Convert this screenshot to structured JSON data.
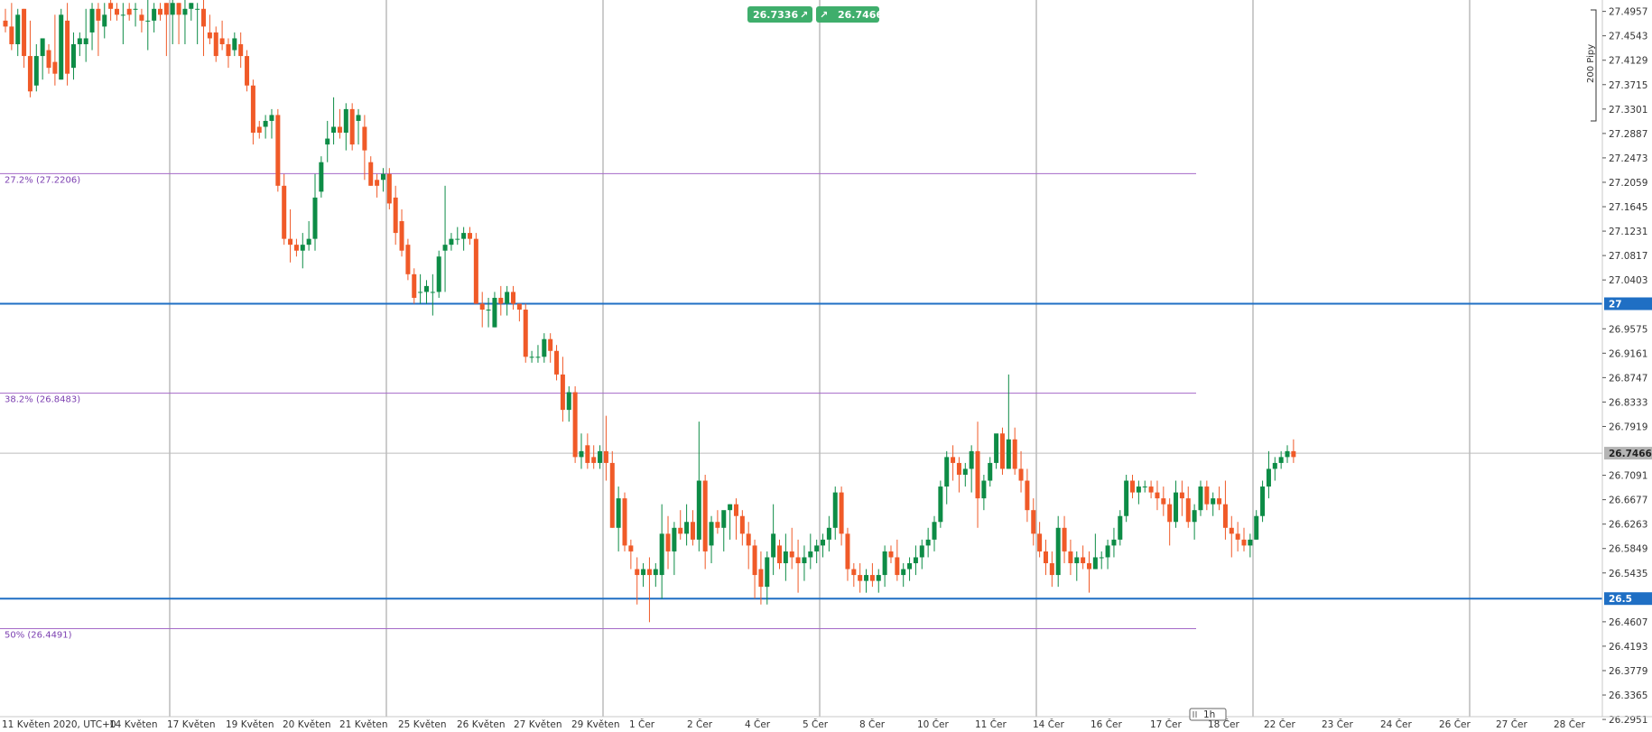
{
  "colors": {
    "up": "#0d8c46",
    "down": "#f05a28",
    "grid": "#9a9a9a",
    "fib": "#a56ac8",
    "fib_text": "#7b3fb0",
    "level": "#1f6fc4",
    "badge": "#3fae6c",
    "current_line": "#bdbdbd",
    "current_tag": "#b4b4b4"
  },
  "top_badges": {
    "sell": "26.7336",
    "sell_icon": "arrow-up-right-icon",
    "buy": "26.7466",
    "buy_icon": "arrow-up-right-icon"
  },
  "scale_label": "200 Pipy",
  "timeframe_label": "1h",
  "chart_data": {
    "type": "candlestick",
    "title": "",
    "xlabel": "",
    "ylabel": "",
    "ylim": [
      26.2738,
      27.515
    ],
    "y_ticks": [
      "27.4957",
      "27.4543",
      "27.4129",
      "27.3715",
      "27.3301",
      "27.2887",
      "27.2473",
      "27.2059",
      "27.1645",
      "27.1231",
      "27.0817",
      "27.0403",
      "26.9575",
      "26.9161",
      "26.8747",
      "26.8333",
      "26.7919",
      "26.7091",
      "26.6677",
      "26.6263",
      "26.5849",
      "26.5435",
      "26.4607",
      "26.4193",
      "26.3779",
      "26.3365",
      "26.2951"
    ],
    "x_ticks": [
      "11 Květen 2020, UTC+0",
      "14 Květen",
      "17 Květen",
      "19 Květen",
      "20 Květen",
      "21 Květen",
      "25 Květen",
      "26 Květen",
      "27 Květen",
      "29 Květen",
      "1 Čer",
      "2 Čer",
      "4 Čer",
      "5 Čer",
      "8 Čer",
      "10 Čer",
      "11 Čer",
      "14 Čer",
      "16 Čer",
      "17 Čer",
      "18 Čer",
      "22 Čer",
      "23 Čer",
      "24 Čer",
      "26 Čer",
      "27 Čer",
      "28 Čer"
    ],
    "fib_levels": [
      {
        "label": "27.2% (27.2206)",
        "value": 27.2206
      },
      {
        "label": "38.2% (26.8483)",
        "value": 26.8483
      },
      {
        "label": "50% (26.4491)",
        "value": 26.4491
      }
    ],
    "horizontal_levels": [
      {
        "label": "27",
        "value": 27.0
      },
      {
        "label": "26.5",
        "value": 26.5
      }
    ],
    "current_price": {
      "label": "26.7466",
      "value": 26.7466
    },
    "grid": true,
    "ohlc": [
      [
        27.48,
        27.5,
        27.46,
        27.47
      ],
      [
        27.47,
        27.51,
        27.43,
        27.44
      ],
      [
        27.44,
        27.5,
        27.42,
        27.49
      ],
      [
        27.5,
        27.5,
        27.4,
        27.42
      ],
      [
        27.42,
        27.48,
        27.35,
        27.36
      ],
      [
        27.37,
        27.44,
        27.36,
        27.42
      ],
      [
        27.42,
        27.45,
        27.38,
        27.45
      ],
      [
        27.43,
        27.44,
        27.39,
        27.4
      ],
      [
        27.41,
        27.49,
        27.37,
        27.39
      ],
      [
        27.38,
        27.5,
        27.38,
        27.49
      ],
      [
        27.48,
        27.51,
        27.37,
        27.39
      ],
      [
        27.4,
        27.46,
        27.38,
        27.44
      ],
      [
        27.44,
        27.46,
        27.42,
        27.45
      ],
      [
        27.44,
        27.5,
        27.41,
        27.45
      ],
      [
        27.46,
        27.51,
        27.43,
        27.5
      ],
      [
        27.5,
        27.51,
        27.42,
        27.48
      ],
      [
        27.47,
        27.51,
        27.45,
        27.49
      ],
      [
        27.51,
        27.52,
        27.48,
        27.5
      ],
      [
        27.5,
        27.51,
        27.48,
        27.49
      ],
      [
        27.49,
        27.51,
        27.44,
        27.49
      ],
      [
        27.5,
        27.51,
        27.48,
        27.49
      ],
      [
        27.5,
        27.51,
        27.47,
        27.5
      ],
      [
        27.49,
        27.5,
        27.46,
        27.48
      ],
      [
        27.48,
        27.52,
        27.43,
        27.48
      ],
      [
        27.48,
        27.51,
        27.46,
        27.5
      ],
      [
        27.5,
        27.51,
        27.48,
        27.49
      ],
      [
        27.51,
        27.51,
        27.42,
        27.49
      ],
      [
        27.49,
        27.52,
        27.44,
        27.51
      ],
      [
        27.51,
        27.51,
        27.44,
        27.49
      ],
      [
        27.49,
        27.52,
        27.44,
        27.5
      ],
      [
        27.5,
        27.51,
        27.48,
        27.51
      ],
      [
        27.5,
        27.51,
        27.44,
        27.5
      ],
      [
        27.5,
        27.52,
        27.42,
        27.47
      ],
      [
        27.46,
        27.49,
        27.44,
        27.45
      ],
      [
        27.46,
        27.47,
        27.41,
        27.42
      ],
      [
        27.45,
        27.48,
        27.43,
        27.44
      ],
      [
        27.44,
        27.45,
        27.4,
        27.42
      ],
      [
        27.43,
        27.46,
        27.42,
        27.45
      ],
      [
        27.44,
        27.46,
        27.4,
        27.42
      ],
      [
        27.42,
        27.43,
        27.36,
        27.37
      ],
      [
        27.37,
        27.38,
        27.27,
        27.29
      ],
      [
        27.3,
        27.31,
        27.28,
        27.29
      ],
      [
        27.3,
        27.32,
        27.28,
        27.31
      ],
      [
        27.31,
        27.33,
        27.28,
        27.32
      ],
      [
        27.32,
        27.33,
        27.19,
        27.2
      ],
      [
        27.2,
        27.22,
        27.1,
        27.11
      ],
      [
        27.11,
        27.16,
        27.07,
        27.1
      ],
      [
        27.1,
        27.11,
        27.08,
        27.09
      ],
      [
        27.09,
        27.12,
        27.06,
        27.1
      ],
      [
        27.1,
        27.14,
        27.09,
        27.11
      ],
      [
        27.11,
        27.22,
        27.09,
        27.18
      ],
      [
        27.19,
        27.25,
        27.18,
        27.24
      ],
      [
        27.27,
        27.31,
        27.24,
        27.28
      ],
      [
        27.29,
        27.35,
        27.27,
        27.3
      ],
      [
        27.3,
        27.33,
        27.28,
        27.29
      ],
      [
        27.29,
        27.34,
        27.26,
        27.33
      ],
      [
        27.33,
        27.34,
        27.26,
        27.27
      ],
      [
        27.31,
        27.33,
        27.27,
        27.32
      ],
      [
        27.3,
        27.32,
        27.21,
        27.26
      ],
      [
        27.24,
        27.25,
        27.2,
        27.2
      ],
      [
        27.21,
        27.22,
        27.18,
        27.2
      ],
      [
        27.21,
        27.23,
        27.19,
        27.22
      ],
      [
        27.22,
        27.23,
        27.16,
        27.17
      ],
      [
        27.18,
        27.2,
        27.1,
        27.12
      ],
      [
        27.14,
        27.16,
        27.08,
        27.09
      ],
      [
        27.1,
        27.11,
        27.04,
        27.05
      ],
      [
        27.05,
        27.06,
        27.0,
        27.01
      ],
      [
        27.02,
        27.05,
        27.0,
        27.02
      ],
      [
        27.02,
        27.04,
        27.0,
        27.03
      ],
      [
        27.02,
        27.05,
        26.98,
        27.02
      ],
      [
        27.02,
        27.09,
        27.01,
        27.08
      ],
      [
        27.09,
        27.2,
        27.02,
        27.1
      ],
      [
        27.1,
        27.12,
        27.09,
        27.11
      ],
      [
        27.11,
        27.13,
        27.1,
        27.11
      ],
      [
        27.11,
        27.13,
        27.09,
        27.12
      ],
      [
        27.12,
        27.13,
        27.1,
        27.11
      ],
      [
        27.11,
        27.12,
        27.0,
        27.0
      ],
      [
        27.0,
        27.02,
        26.96,
        26.99
      ],
      [
        26.99,
        27.01,
        26.96,
        26.99
      ],
      [
        26.96,
        27.02,
        26.96,
        27.01
      ],
      [
        27.01,
        27.03,
        26.98,
        27.0
      ],
      [
        27.0,
        27.03,
        26.98,
        27.02
      ],
      [
        27.02,
        27.03,
        26.99,
        27.0
      ],
      [
        27.0,
        27.0,
        26.97,
        26.99
      ],
      [
        26.99,
        27.0,
        26.9,
        26.91
      ],
      [
        26.91,
        26.92,
        26.9,
        26.91
      ],
      [
        26.91,
        26.93,
        26.9,
        26.91
      ],
      [
        26.91,
        26.95,
        26.9,
        26.94
      ],
      [
        26.94,
        26.95,
        26.9,
        26.92
      ],
      [
        26.92,
        26.93,
        26.87,
        26.88
      ],
      [
        26.88,
        26.91,
        26.8,
        26.82
      ],
      [
        26.82,
        26.86,
        26.8,
        26.85
      ],
      [
        26.85,
        26.86,
        26.73,
        26.74
      ],
      [
        26.74,
        26.78,
        26.72,
        26.75
      ],
      [
        26.76,
        26.78,
        26.72,
        26.73
      ],
      [
        26.74,
        26.76,
        26.72,
        26.73
      ],
      [
        26.73,
        26.76,
        26.72,
        26.75
      ],
      [
        26.75,
        26.81,
        26.7,
        26.73
      ],
      [
        26.73,
        26.75,
        26.62,
        26.62
      ],
      [
        26.62,
        26.69,
        26.58,
        26.67
      ],
      [
        26.67,
        26.68,
        26.58,
        26.59
      ],
      [
        26.59,
        26.6,
        26.55,
        26.58
      ],
      [
        26.55,
        26.57,
        26.49,
        26.54
      ],
      [
        26.54,
        26.56,
        26.52,
        26.55
      ],
      [
        26.55,
        26.57,
        26.46,
        26.54
      ],
      [
        26.54,
        26.56,
        26.52,
        26.55
      ],
      [
        26.54,
        26.66,
        26.5,
        26.61
      ],
      [
        26.61,
        26.64,
        26.55,
        26.58
      ],
      [
        26.58,
        26.63,
        26.54,
        26.62
      ],
      [
        26.62,
        26.65,
        26.6,
        26.61
      ],
      [
        26.61,
        26.66,
        26.59,
        26.63
      ],
      [
        26.63,
        26.65,
        26.59,
        26.6
      ],
      [
        26.6,
        26.8,
        26.58,
        26.7
      ],
      [
        26.7,
        26.71,
        26.55,
        26.58
      ],
      [
        26.59,
        26.64,
        26.56,
        26.63
      ],
      [
        26.63,
        26.65,
        26.61,
        26.62
      ],
      [
        26.62,
        26.64,
        26.58,
        26.65
      ],
      [
        26.65,
        26.66,
        26.6,
        26.66
      ],
      [
        26.66,
        26.67,
        26.6,
        26.64
      ],
      [
        26.64,
        26.65,
        26.59,
        26.61
      ],
      [
        26.61,
        26.63,
        26.55,
        26.59
      ],
      [
        26.59,
        26.6,
        26.5,
        26.54
      ],
      [
        26.55,
        26.58,
        26.49,
        26.52
      ],
      [
        26.52,
        26.58,
        26.49,
        26.57
      ],
      [
        26.57,
        26.66,
        26.54,
        26.61
      ],
      [
        26.59,
        26.6,
        26.55,
        26.56
      ],
      [
        26.56,
        26.61,
        26.53,
        26.58
      ],
      [
        26.58,
        26.62,
        26.55,
        26.57
      ],
      [
        26.57,
        26.6,
        26.51,
        26.56
      ],
      [
        26.56,
        26.59,
        26.53,
        26.57
      ],
      [
        26.57,
        26.61,
        26.55,
        26.58
      ],
      [
        26.58,
        26.6,
        26.56,
        26.59
      ],
      [
        26.59,
        26.61,
        26.57,
        26.6
      ],
      [
        26.6,
        26.64,
        26.58,
        26.62
      ],
      [
        26.62,
        26.69,
        26.6,
        26.68
      ],
      [
        26.68,
        26.69,
        26.59,
        26.61
      ],
      [
        26.61,
        26.62,
        26.53,
        26.55
      ],
      [
        26.55,
        26.56,
        26.52,
        26.54
      ],
      [
        26.54,
        26.56,
        26.51,
        26.53
      ],
      [
        26.53,
        26.55,
        26.51,
        26.54
      ],
      [
        26.54,
        26.56,
        26.52,
        26.53
      ],
      [
        26.53,
        26.55,
        26.51,
        26.54
      ],
      [
        26.54,
        26.59,
        26.52,
        26.58
      ],
      [
        26.58,
        26.59,
        26.56,
        26.57
      ],
      [
        26.57,
        26.6,
        26.53,
        26.54
      ],
      [
        26.54,
        26.56,
        26.52,
        26.55
      ],
      [
        26.55,
        26.57,
        26.53,
        26.56
      ],
      [
        26.56,
        26.59,
        26.54,
        26.57
      ],
      [
        26.57,
        26.6,
        26.55,
        26.59
      ],
      [
        26.59,
        26.62,
        26.57,
        26.6
      ],
      [
        26.6,
        26.64,
        26.58,
        26.63
      ],
      [
        26.63,
        26.7,
        26.62,
        26.69
      ],
      [
        26.69,
        26.75,
        26.66,
        26.74
      ],
      [
        26.74,
        26.76,
        26.7,
        26.73
      ],
      [
        26.73,
        26.74,
        26.68,
        26.71
      ],
      [
        26.71,
        26.73,
        26.69,
        26.72
      ],
      [
        26.72,
        26.76,
        26.68,
        26.75
      ],
      [
        26.75,
        26.8,
        26.62,
        26.67
      ],
      [
        26.67,
        26.71,
        26.65,
        26.7
      ],
      [
        26.7,
        26.74,
        26.69,
        26.73
      ],
      [
        26.73,
        26.77,
        26.72,
        26.78
      ],
      [
        26.78,
        26.79,
        26.71,
        26.72
      ],
      [
        26.72,
        26.88,
        26.72,
        26.77
      ],
      [
        26.77,
        26.79,
        26.71,
        26.72
      ],
      [
        26.72,
        26.75,
        26.68,
        26.7
      ],
      [
        26.7,
        26.72,
        26.63,
        26.65
      ],
      [
        26.65,
        26.67,
        26.59,
        26.61
      ],
      [
        26.61,
        26.63,
        26.57,
        26.58
      ],
      [
        26.58,
        26.6,
        26.54,
        26.56
      ],
      [
        26.56,
        26.58,
        26.52,
        26.54
      ],
      [
        26.54,
        26.64,
        26.52,
        26.62
      ],
      [
        26.62,
        26.64,
        26.56,
        26.58
      ],
      [
        26.58,
        26.6,
        26.54,
        26.56
      ],
      [
        26.56,
        26.58,
        26.53,
        26.57
      ],
      [
        26.57,
        26.59,
        26.55,
        26.56
      ],
      [
        26.56,
        26.58,
        26.51,
        26.55
      ],
      [
        26.55,
        26.61,
        26.55,
        26.57
      ],
      [
        26.57,
        26.58,
        26.55,
        26.57
      ],
      [
        26.57,
        26.6,
        26.55,
        26.59
      ],
      [
        26.59,
        26.62,
        26.57,
        26.6
      ],
      [
        26.6,
        26.65,
        26.59,
        26.64
      ],
      [
        26.64,
        26.71,
        26.63,
        26.7
      ],
      [
        26.7,
        26.71,
        26.67,
        26.68
      ],
      [
        26.68,
        26.7,
        26.66,
        26.69
      ],
      [
        26.69,
        26.7,
        26.68,
        26.69
      ],
      [
        26.69,
        26.7,
        26.67,
        26.68
      ],
      [
        26.68,
        26.7,
        26.65,
        26.67
      ],
      [
        26.67,
        26.69,
        26.64,
        26.66
      ],
      [
        26.66,
        26.67,
        26.59,
        26.63
      ],
      [
        26.63,
        26.7,
        26.62,
        26.68
      ],
      [
        26.68,
        26.7,
        26.64,
        26.67
      ],
      [
        26.67,
        26.69,
        26.62,
        26.63
      ],
      [
        26.63,
        26.66,
        26.6,
        26.65
      ],
      [
        26.65,
        26.7,
        26.64,
        26.69
      ],
      [
        26.69,
        26.7,
        26.65,
        26.66
      ],
      [
        26.66,
        26.68,
        26.64,
        26.67
      ],
      [
        26.67,
        26.69,
        26.65,
        26.66
      ],
      [
        26.66,
        26.7,
        26.6,
        26.62
      ],
      [
        26.62,
        26.64,
        26.57,
        26.61
      ],
      [
        26.61,
        26.63,
        26.58,
        26.6
      ],
      [
        26.6,
        26.62,
        26.58,
        26.59
      ],
      [
        26.59,
        26.61,
        26.57,
        26.6
      ],
      [
        26.6,
        26.65,
        26.6,
        26.64
      ],
      [
        26.64,
        26.7,
        26.63,
        26.69
      ],
      [
        26.69,
        26.75,
        26.67,
        26.72
      ],
      [
        26.72,
        26.74,
        26.7,
        26.73
      ],
      [
        26.73,
        26.75,
        26.72,
        26.74
      ],
      [
        26.74,
        26.76,
        26.73,
        26.75
      ],
      [
        26.75,
        26.77,
        26.73,
        26.74
      ]
    ]
  }
}
